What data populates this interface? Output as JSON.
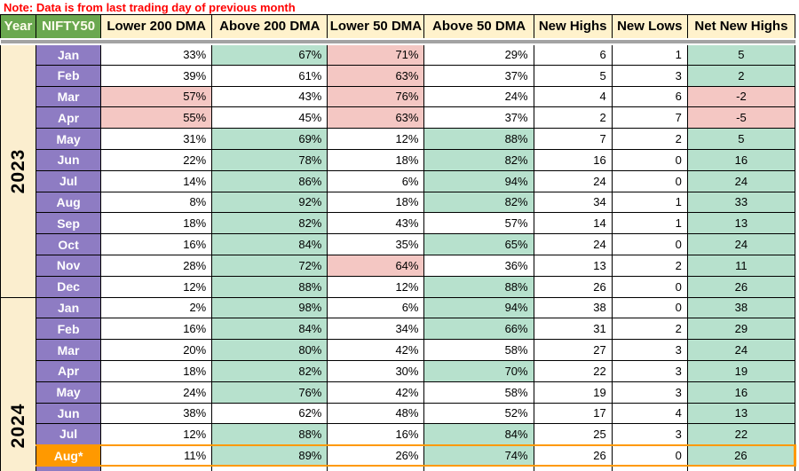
{
  "note": "Note: Data is from last trading day of previous month",
  "colors": {
    "note_red": "#FF0000",
    "header_green": "#6AA84F",
    "header_cream": "#FFF2CC",
    "month_purple": "#8E7CC3",
    "highlight_orange": "#FF9900",
    "cell_green": "#B7E1CD",
    "cell_pink": "#F4C7C3",
    "year_column_cream": "#FBEECF",
    "divider_gray": "#A3A3A3"
  },
  "table": {
    "columns": [
      "Year",
      "NIFTY50",
      "Lower 200 DMA",
      "Above 200 DMA",
      "Lower 50 DMA",
      "Above 50 DMA",
      "New Highs",
      "New Lows",
      "Net New Highs"
    ],
    "year_groups": [
      {
        "year": "2023",
        "rows": [
          {
            "month": "Jan",
            "cells": [
              {
                "v": "33%",
                "bg": "w"
              },
              {
                "v": "67%",
                "bg": "g"
              },
              {
                "v": "71%",
                "bg": "p"
              },
              {
                "v": "29%",
                "bg": "w"
              },
              {
                "v": "6",
                "bg": "w"
              },
              {
                "v": "1",
                "bg": "w"
              },
              {
                "v": "5",
                "bg": "g"
              }
            ]
          },
          {
            "month": "Feb",
            "cells": [
              {
                "v": "39%",
                "bg": "w"
              },
              {
                "v": "61%",
                "bg": "w"
              },
              {
                "v": "63%",
                "bg": "p"
              },
              {
                "v": "37%",
                "bg": "w"
              },
              {
                "v": "5",
                "bg": "w"
              },
              {
                "v": "3",
                "bg": "w"
              },
              {
                "v": "2",
                "bg": "g"
              }
            ]
          },
          {
            "month": "Mar",
            "cells": [
              {
                "v": "57%",
                "bg": "p"
              },
              {
                "v": "43%",
                "bg": "w"
              },
              {
                "v": "76%",
                "bg": "p"
              },
              {
                "v": "24%",
                "bg": "w"
              },
              {
                "v": "4",
                "bg": "w"
              },
              {
                "v": "6",
                "bg": "w"
              },
              {
                "v": "-2",
                "bg": "p"
              }
            ]
          },
          {
            "month": "Apr",
            "cells": [
              {
                "v": "55%",
                "bg": "p"
              },
              {
                "v": "45%",
                "bg": "w"
              },
              {
                "v": "63%",
                "bg": "p"
              },
              {
                "v": "37%",
                "bg": "w"
              },
              {
                "v": "2",
                "bg": "w"
              },
              {
                "v": "7",
                "bg": "w"
              },
              {
                "v": "-5",
                "bg": "p"
              }
            ]
          },
          {
            "month": "May",
            "cells": [
              {
                "v": "31%",
                "bg": "w"
              },
              {
                "v": "69%",
                "bg": "g"
              },
              {
                "v": "12%",
                "bg": "w"
              },
              {
                "v": "88%",
                "bg": "g"
              },
              {
                "v": "7",
                "bg": "w"
              },
              {
                "v": "2",
                "bg": "w"
              },
              {
                "v": "5",
                "bg": "g"
              }
            ]
          },
          {
            "month": "Jun",
            "cells": [
              {
                "v": "22%",
                "bg": "w"
              },
              {
                "v": "78%",
                "bg": "g"
              },
              {
                "v": "18%",
                "bg": "w"
              },
              {
                "v": "82%",
                "bg": "g"
              },
              {
                "v": "16",
                "bg": "w"
              },
              {
                "v": "0",
                "bg": "w"
              },
              {
                "v": "16",
                "bg": "g"
              }
            ]
          },
          {
            "month": "Jul",
            "cells": [
              {
                "v": "14%",
                "bg": "w"
              },
              {
                "v": "86%",
                "bg": "g"
              },
              {
                "v": "6%",
                "bg": "w"
              },
              {
                "v": "94%",
                "bg": "g"
              },
              {
                "v": "24",
                "bg": "w"
              },
              {
                "v": "0",
                "bg": "w"
              },
              {
                "v": "24",
                "bg": "g"
              }
            ]
          },
          {
            "month": "Aug",
            "cells": [
              {
                "v": "8%",
                "bg": "w"
              },
              {
                "v": "92%",
                "bg": "g"
              },
              {
                "v": "18%",
                "bg": "w"
              },
              {
                "v": "82%",
                "bg": "g"
              },
              {
                "v": "34",
                "bg": "w"
              },
              {
                "v": "1",
                "bg": "w"
              },
              {
                "v": "33",
                "bg": "g"
              }
            ]
          },
          {
            "month": "Sep",
            "cells": [
              {
                "v": "18%",
                "bg": "w"
              },
              {
                "v": "82%",
                "bg": "g"
              },
              {
                "v": "43%",
                "bg": "w"
              },
              {
                "v": "57%",
                "bg": "w"
              },
              {
                "v": "14",
                "bg": "w"
              },
              {
                "v": "1",
                "bg": "w"
              },
              {
                "v": "13",
                "bg": "g"
              }
            ]
          },
          {
            "month": "Oct",
            "cells": [
              {
                "v": "16%",
                "bg": "w"
              },
              {
                "v": "84%",
                "bg": "g"
              },
              {
                "v": "35%",
                "bg": "w"
              },
              {
                "v": "65%",
                "bg": "g"
              },
              {
                "v": "24",
                "bg": "w"
              },
              {
                "v": "0",
                "bg": "w"
              },
              {
                "v": "24",
                "bg": "g"
              }
            ]
          },
          {
            "month": "Nov",
            "cells": [
              {
                "v": "28%",
                "bg": "w"
              },
              {
                "v": "72%",
                "bg": "g"
              },
              {
                "v": "64%",
                "bg": "p"
              },
              {
                "v": "36%",
                "bg": "w"
              },
              {
                "v": "13",
                "bg": "w"
              },
              {
                "v": "2",
                "bg": "w"
              },
              {
                "v": "11",
                "bg": "g"
              }
            ]
          },
          {
            "month": "Dec",
            "cells": [
              {
                "v": "12%",
                "bg": "w"
              },
              {
                "v": "88%",
                "bg": "g"
              },
              {
                "v": "12%",
                "bg": "w"
              },
              {
                "v": "88%",
                "bg": "g"
              },
              {
                "v": "26",
                "bg": "w"
              },
              {
                "v": "0",
                "bg": "w"
              },
              {
                "v": "26",
                "bg": "g"
              }
            ]
          }
        ]
      },
      {
        "year": "2024",
        "has_partial_next_row": true,
        "rows": [
          {
            "month": "Jan",
            "cells": [
              {
                "v": "2%",
                "bg": "w"
              },
              {
                "v": "98%",
                "bg": "g"
              },
              {
                "v": "6%",
                "bg": "w"
              },
              {
                "v": "94%",
                "bg": "g"
              },
              {
                "v": "38",
                "bg": "w"
              },
              {
                "v": "0",
                "bg": "w"
              },
              {
                "v": "38",
                "bg": "g"
              }
            ]
          },
          {
            "month": "Feb",
            "cells": [
              {
                "v": "16%",
                "bg": "w"
              },
              {
                "v": "84%",
                "bg": "g"
              },
              {
                "v": "34%",
                "bg": "w"
              },
              {
                "v": "66%",
                "bg": "g"
              },
              {
                "v": "31",
                "bg": "w"
              },
              {
                "v": "2",
                "bg": "w"
              },
              {
                "v": "29",
                "bg": "g"
              }
            ]
          },
          {
            "month": "Mar",
            "cells": [
              {
                "v": "20%",
                "bg": "w"
              },
              {
                "v": "80%",
                "bg": "g"
              },
              {
                "v": "42%",
                "bg": "w"
              },
              {
                "v": "58%",
                "bg": "w"
              },
              {
                "v": "27",
                "bg": "w"
              },
              {
                "v": "3",
                "bg": "w"
              },
              {
                "v": "24",
                "bg": "g"
              }
            ]
          },
          {
            "month": "Apr",
            "cells": [
              {
                "v": "18%",
                "bg": "w"
              },
              {
                "v": "82%",
                "bg": "g"
              },
              {
                "v": "30%",
                "bg": "w"
              },
              {
                "v": "70%",
                "bg": "g"
              },
              {
                "v": "22",
                "bg": "w"
              },
              {
                "v": "3",
                "bg": "w"
              },
              {
                "v": "19",
                "bg": "g"
              }
            ]
          },
          {
            "month": "May",
            "cells": [
              {
                "v": "24%",
                "bg": "w"
              },
              {
                "v": "76%",
                "bg": "g"
              },
              {
                "v": "42%",
                "bg": "w"
              },
              {
                "v": "58%",
                "bg": "w"
              },
              {
                "v": "19",
                "bg": "w"
              },
              {
                "v": "3",
                "bg": "w"
              },
              {
                "v": "16",
                "bg": "g"
              }
            ]
          },
          {
            "month": "Jun",
            "cells": [
              {
                "v": "38%",
                "bg": "w"
              },
              {
                "v": "62%",
                "bg": "w"
              },
              {
                "v": "48%",
                "bg": "w"
              },
              {
                "v": "52%",
                "bg": "w"
              },
              {
                "v": "17",
                "bg": "w"
              },
              {
                "v": "4",
                "bg": "w"
              },
              {
                "v": "13",
                "bg": "g"
              }
            ]
          },
          {
            "month": "Jul",
            "cells": [
              {
                "v": "12%",
                "bg": "w"
              },
              {
                "v": "88%",
                "bg": "g"
              },
              {
                "v": "16%",
                "bg": "w"
              },
              {
                "v": "84%",
                "bg": "g"
              },
              {
                "v": "25",
                "bg": "w"
              },
              {
                "v": "3",
                "bg": "w"
              },
              {
                "v": "22",
                "bg": "g"
              }
            ]
          },
          {
            "month": "Aug*",
            "highlight": true,
            "cells": [
              {
                "v": "11%",
                "bg": "w"
              },
              {
                "v": "89%",
                "bg": "g"
              },
              {
                "v": "26%",
                "bg": "w"
              },
              {
                "v": "74%",
                "bg": "g"
              },
              {
                "v": "26",
                "bg": "w"
              },
              {
                "v": "0",
                "bg": "w"
              },
              {
                "v": "26",
                "bg": "g"
              }
            ]
          }
        ]
      }
    ]
  }
}
